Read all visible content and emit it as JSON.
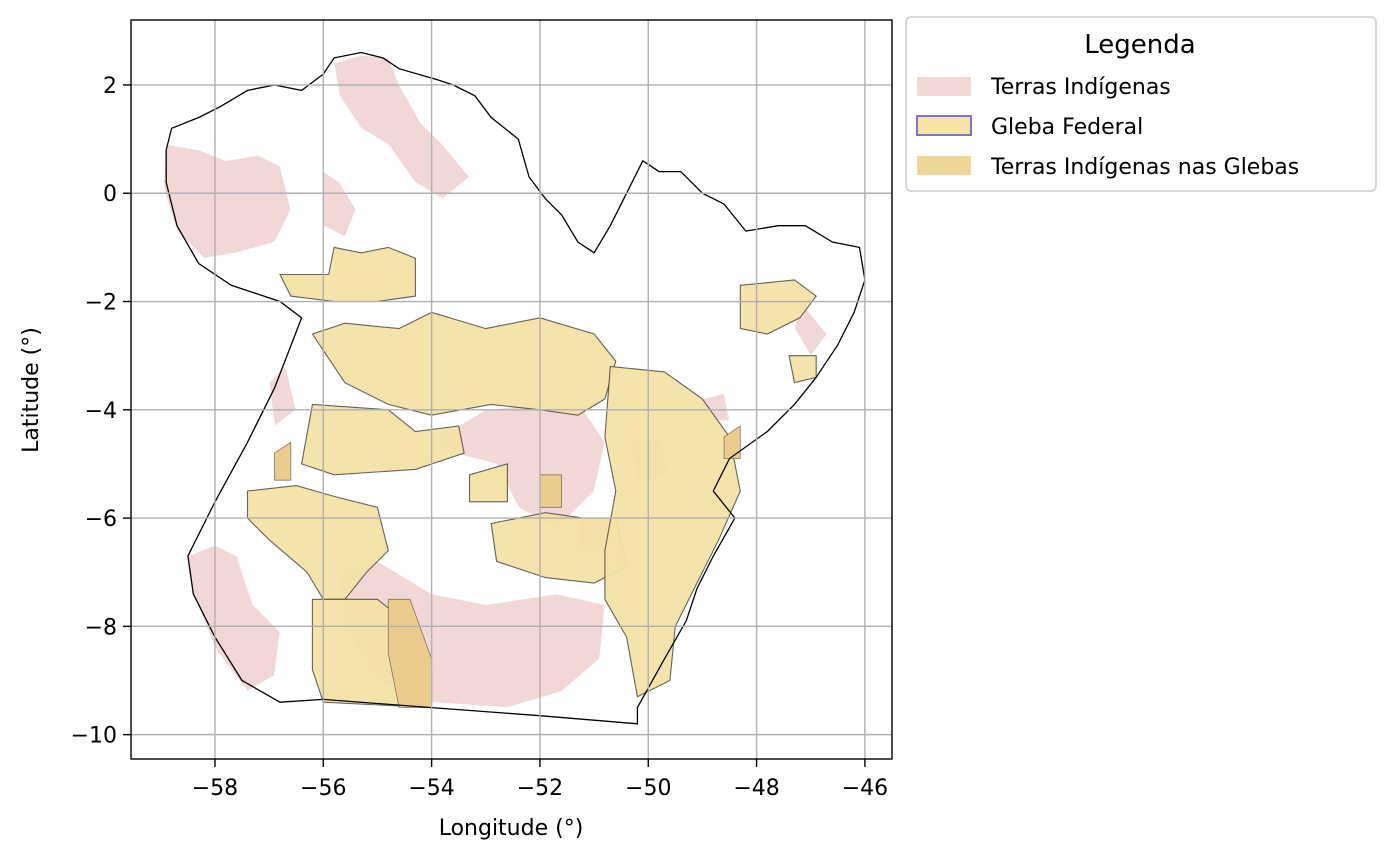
{
  "chart_data": {
    "type": "map",
    "title": "",
    "xlabel": "Longitude (°)",
    "ylabel": "Latitude (°)",
    "xlim": [
      -59.55,
      -45.5
    ],
    "ylim": [
      -10.45,
      3.2
    ],
    "x_ticks": [
      -58,
      -56,
      -54,
      -52,
      -50,
      -48,
      -46
    ],
    "y_ticks": [
      2,
      0,
      -2,
      -4,
      -6,
      -8,
      -10
    ],
    "x_tick_labels": [
      "−58",
      "−56",
      "−54",
      "−52",
      "−50",
      "−48",
      "−46"
    ],
    "y_tick_labels": [
      "2",
      "0",
      "−2",
      "−4",
      "−6",
      "−8",
      "−10"
    ],
    "grid": true,
    "legend": {
      "title": "Legenda",
      "placement": "outside-upper-right",
      "items": [
        {
          "label": "Terras Indígenas",
          "fill": "#f2d7d7",
          "edge": "none"
        },
        {
          "label": "Gleba Federal",
          "fill": "#f5e3a8",
          "edge": "#7a74d6"
        },
        {
          "label": "Terras Indígenas nas Glebas",
          "fill": "#f0d59a",
          "edge": "none"
        }
      ]
    },
    "colors": {
      "indigenous": "#f2d7d7",
      "gleba": "#f3e2a6",
      "gleba_edge": "#333333",
      "overlap": "#ebcc8c",
      "state_outline": "#000000",
      "grid": "#b0b0b0"
    },
    "layers": {
      "state_outline": [
        [
          -58.8,
          1.2
        ],
        [
          -58.3,
          1.4
        ],
        [
          -57.9,
          1.6
        ],
        [
          -57.4,
          1.9
        ],
        [
          -56.9,
          2.0
        ],
        [
          -56.4,
          1.9
        ],
        [
          -56.0,
          2.2
        ],
        [
          -55.8,
          2.5
        ],
        [
          -55.3,
          2.6
        ],
        [
          -54.9,
          2.5
        ],
        [
          -54.6,
          2.3
        ],
        [
          -53.9,
          2.1
        ],
        [
          -53.6,
          2.0
        ],
        [
          -53.2,
          1.8
        ],
        [
          -52.9,
          1.4
        ],
        [
          -52.4,
          1.0
        ],
        [
          -52.2,
          0.3
        ],
        [
          -51.9,
          -0.1
        ],
        [
          -51.6,
          -0.4
        ],
        [
          -51.3,
          -0.9
        ],
        [
          -51.0,
          -1.1
        ],
        [
          -50.7,
          -0.6
        ],
        [
          -50.4,
          0.0
        ],
        [
          -50.1,
          0.6
        ],
        [
          -49.8,
          0.4
        ],
        [
          -49.4,
          0.4
        ],
        [
          -49.0,
          0.0
        ],
        [
          -48.6,
          -0.2
        ],
        [
          -48.2,
          -0.7
        ],
        [
          -47.6,
          -0.6
        ],
        [
          -47.1,
          -0.6
        ],
        [
          -46.6,
          -0.9
        ],
        [
          -46.1,
          -1.0
        ],
        [
          -46.0,
          -1.6
        ],
        [
          -46.2,
          -2.2
        ],
        [
          -46.5,
          -2.8
        ],
        [
          -46.9,
          -3.4
        ],
        [
          -47.3,
          -3.9
        ],
        [
          -47.8,
          -4.4
        ],
        [
          -48.5,
          -4.9
        ],
        [
          -48.8,
          -5.5
        ],
        [
          -48.4,
          -6.0
        ],
        [
          -48.8,
          -6.7
        ],
        [
          -49.1,
          -7.3
        ],
        [
          -49.3,
          -7.9
        ],
        [
          -49.7,
          -8.6
        ],
        [
          -50.2,
          -9.5
        ],
        [
          -50.2,
          -9.8
        ],
        [
          -52.0,
          -9.65
        ],
        [
          -54.0,
          -9.5
        ],
        [
          -56.0,
          -9.35
        ],
        [
          -56.8,
          -9.4
        ],
        [
          -57.5,
          -9.0
        ],
        [
          -58.0,
          -8.2
        ],
        [
          -58.4,
          -7.4
        ],
        [
          -58.5,
          -6.7
        ],
        [
          -58.0,
          -5.7
        ],
        [
          -57.4,
          -4.6
        ],
        [
          -56.9,
          -3.6
        ],
        [
          -56.4,
          -2.3
        ],
        [
          -56.8,
          -2.0
        ],
        [
          -57.7,
          -1.7
        ],
        [
          -58.3,
          -1.3
        ],
        [
          -58.7,
          -0.6
        ],
        [
          -58.9,
          0.2
        ],
        [
          -58.9,
          0.8
        ],
        [
          -58.8,
          1.2
        ]
      ],
      "indigenous_areas": [
        [
          [
            -58.9,
            0.9
          ],
          [
            -58.3,
            0.8
          ],
          [
            -57.8,
            0.6
          ],
          [
            -57.2,
            0.7
          ],
          [
            -56.8,
            0.5
          ],
          [
            -56.6,
            -0.3
          ],
          [
            -56.9,
            -0.9
          ],
          [
            -57.6,
            -1.1
          ],
          [
            -58.2,
            -1.2
          ],
          [
            -58.7,
            -0.7
          ],
          [
            -58.95,
            0.1
          ]
        ],
        [
          [
            -55.7,
            1.8
          ],
          [
            -55.8,
            2.4
          ],
          [
            -55.3,
            2.55
          ],
          [
            -54.8,
            2.5
          ],
          [
            -54.6,
            2.0
          ],
          [
            -54.2,
            1.3
          ],
          [
            -53.8,
            0.9
          ],
          [
            -53.3,
            0.3
          ],
          [
            -53.8,
            -0.1
          ],
          [
            -54.3,
            0.2
          ],
          [
            -54.8,
            0.9
          ],
          [
            -55.3,
            1.2
          ]
        ],
        [
          [
            -56.0,
            0.4
          ],
          [
            -55.7,
            0.2
          ],
          [
            -55.4,
            -0.3
          ],
          [
            -55.6,
            -0.8
          ],
          [
            -56.0,
            -0.6
          ]
        ],
        [
          [
            -57.0,
            -3.5
          ],
          [
            -56.7,
            -3.2
          ],
          [
            -56.5,
            -4.0
          ],
          [
            -56.9,
            -4.3
          ]
        ],
        [
          [
            -54.0,
            -4.6
          ],
          [
            -53.0,
            -4.0
          ],
          [
            -52.0,
            -3.9
          ],
          [
            -51.2,
            -4.0
          ],
          [
            -50.8,
            -4.6
          ],
          [
            -51.0,
            -5.5
          ],
          [
            -51.7,
            -6.2
          ],
          [
            -52.4,
            -5.8
          ],
          [
            -52.8,
            -5.0
          ],
          [
            -53.6,
            -4.8
          ]
        ],
        [
          [
            -55.7,
            -7.0
          ],
          [
            -55.0,
            -6.8
          ],
          [
            -54.0,
            -7.4
          ],
          [
            -53.0,
            -7.6
          ],
          [
            -51.7,
            -7.4
          ],
          [
            -50.8,
            -7.6
          ],
          [
            -50.9,
            -8.6
          ],
          [
            -51.6,
            -9.2
          ],
          [
            -52.6,
            -9.5
          ],
          [
            -54.0,
            -9.4
          ],
          [
            -55.0,
            -9.0
          ],
          [
            -55.6,
            -8.0
          ]
        ],
        [
          [
            -58.5,
            -6.7
          ],
          [
            -58.0,
            -6.5
          ],
          [
            -57.6,
            -6.7
          ],
          [
            -57.3,
            -7.6
          ],
          [
            -56.8,
            -8.1
          ],
          [
            -56.9,
            -8.9
          ],
          [
            -57.4,
            -9.2
          ],
          [
            -58.0,
            -8.4
          ],
          [
            -58.4,
            -7.4
          ]
        ],
        [
          [
            -51.3,
            -6.0
          ],
          [
            -50.8,
            -6.0
          ],
          [
            -50.6,
            -6.6
          ],
          [
            -51.3,
            -6.6
          ]
        ],
        [
          [
            -47.2,
            -2.0
          ],
          [
            -46.7,
            -2.6
          ],
          [
            -47.0,
            -3.0
          ],
          [
            -47.3,
            -2.5
          ]
        ],
        [
          [
            -49.0,
            -3.8
          ],
          [
            -48.6,
            -3.7
          ],
          [
            -48.5,
            -4.2
          ],
          [
            -48.9,
            -4.2
          ]
        ],
        [
          [
            -50.3,
            -4.6
          ],
          [
            -49.8,
            -4.5
          ],
          [
            -49.6,
            -5.2
          ],
          [
            -50.2,
            -5.3
          ]
        ]
      ],
      "glebas": [
        [
          [
            -56.8,
            -1.5
          ],
          [
            -55.9,
            -1.5
          ],
          [
            -55.8,
            -1.0
          ],
          [
            -55.3,
            -1.1
          ],
          [
            -54.8,
            -1.0
          ],
          [
            -54.3,
            -1.2
          ],
          [
            -54.3,
            -1.9
          ],
          [
            -55.0,
            -2.0
          ],
          [
            -55.8,
            -2.0
          ],
          [
            -56.6,
            -1.9
          ]
        ],
        [
          [
            -56.2,
            -2.6
          ],
          [
            -55.6,
            -2.4
          ],
          [
            -54.6,
            -2.5
          ],
          [
            -54.0,
            -2.2
          ],
          [
            -53.0,
            -2.5
          ],
          [
            -52.0,
            -2.3
          ],
          [
            -51.0,
            -2.6
          ],
          [
            -50.6,
            -3.1
          ],
          [
            -50.8,
            -3.8
          ],
          [
            -51.3,
            -4.1
          ],
          [
            -52.0,
            -4.0
          ],
          [
            -52.9,
            -3.9
          ],
          [
            -54.0,
            -4.1
          ],
          [
            -54.8,
            -3.9
          ],
          [
            -55.6,
            -3.5
          ]
        ],
        [
          [
            -56.2,
            -3.9
          ],
          [
            -54.8,
            -4.0
          ],
          [
            -54.3,
            -4.4
          ],
          [
            -53.5,
            -4.3
          ],
          [
            -53.4,
            -4.8
          ],
          [
            -54.3,
            -5.1
          ],
          [
            -55.8,
            -5.2
          ],
          [
            -56.4,
            -5.0
          ]
        ],
        [
          [
            -57.4,
            -5.5
          ],
          [
            -56.5,
            -5.4
          ],
          [
            -55.8,
            -5.6
          ],
          [
            -55.0,
            -5.8
          ],
          [
            -54.8,
            -6.6
          ],
          [
            -55.2,
            -7.0
          ],
          [
            -55.6,
            -7.5
          ],
          [
            -56.0,
            -7.5
          ],
          [
            -56.3,
            -7.0
          ],
          [
            -57.0,
            -6.4
          ],
          [
            -57.4,
            -6.0
          ]
        ],
        [
          [
            -56.2,
            -7.5
          ],
          [
            -55.0,
            -7.5
          ],
          [
            -54.5,
            -7.9
          ],
          [
            -54.0,
            -8.8
          ],
          [
            -54.0,
            -9.5
          ],
          [
            -56.0,
            -9.4
          ],
          [
            -56.2,
            -8.8
          ]
        ],
        [
          [
            -52.9,
            -6.1
          ],
          [
            -51.9,
            -5.9
          ],
          [
            -51.2,
            -6.0
          ],
          [
            -50.6,
            -6.0
          ],
          [
            -50.4,
            -6.9
          ],
          [
            -51.0,
            -7.2
          ],
          [
            -51.9,
            -7.1
          ],
          [
            -52.8,
            -6.8
          ]
        ],
        [
          [
            -50.7,
            -3.2
          ],
          [
            -49.7,
            -3.3
          ],
          [
            -49.0,
            -3.8
          ],
          [
            -48.5,
            -4.5
          ],
          [
            -48.3,
            -5.5
          ],
          [
            -48.7,
            -6.4
          ],
          [
            -49.1,
            -7.2
          ],
          [
            -49.5,
            -8.0
          ],
          [
            -49.6,
            -9.0
          ],
          [
            -50.2,
            -9.3
          ],
          [
            -50.4,
            -8.2
          ],
          [
            -50.8,
            -7.5
          ],
          [
            -50.8,
            -6.6
          ],
          [
            -50.6,
            -5.5
          ],
          [
            -50.8,
            -4.5
          ]
        ],
        [
          [
            -48.3,
            -1.7
          ],
          [
            -47.3,
            -1.6
          ],
          [
            -46.9,
            -1.9
          ],
          [
            -47.2,
            -2.3
          ],
          [
            -47.8,
            -2.6
          ],
          [
            -48.3,
            -2.5
          ]
        ],
        [
          [
            -47.4,
            -3.0
          ],
          [
            -46.9,
            -3.0
          ],
          [
            -46.9,
            -3.4
          ],
          [
            -47.3,
            -3.5
          ]
        ],
        [
          [
            -53.3,
            -5.2
          ],
          [
            -52.6,
            -5.0
          ],
          [
            -52.6,
            -5.7
          ],
          [
            -53.3,
            -5.7
          ]
        ]
      ],
      "indigenous_in_glebas": [
        [
          [
            -54.8,
            -7.5
          ],
          [
            -54.4,
            -7.5
          ],
          [
            -54.0,
            -8.6
          ],
          [
            -54.0,
            -9.5
          ],
          [
            -54.6,
            -9.5
          ],
          [
            -54.8,
            -8.5
          ]
        ],
        [
          [
            -56.9,
            -4.8
          ],
          [
            -56.6,
            -4.6
          ],
          [
            -56.6,
            -5.3
          ],
          [
            -56.9,
            -5.3
          ]
        ],
        [
          [
            -52.0,
            -5.2
          ],
          [
            -51.6,
            -5.2
          ],
          [
            -51.6,
            -5.8
          ],
          [
            -52.0,
            -5.8
          ]
        ],
        [
          [
            -48.6,
            -4.5
          ],
          [
            -48.3,
            -4.3
          ],
          [
            -48.3,
            -4.9
          ],
          [
            -48.6,
            -4.9
          ]
        ]
      ]
    }
  }
}
